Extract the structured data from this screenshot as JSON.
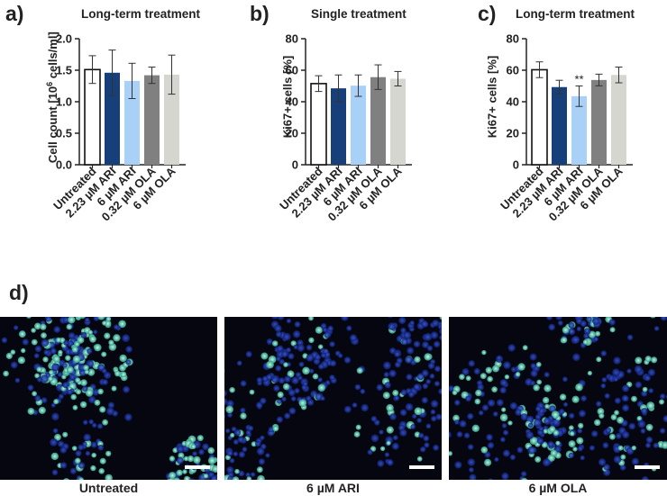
{
  "panels": {
    "a": "a)",
    "b": "b)",
    "c": "c)",
    "d": "d)"
  },
  "colors": {
    "untreated": "#ffffff",
    "ari_low": "#173f7a",
    "ari_high": "#a9d0f7",
    "ola_low": "#808080",
    "ola_high": "#d6d6d0",
    "axis": "#222222",
    "stain_blue": "#1a2f9c",
    "stain_green": "#6fe0c0"
  },
  "chart_data": [
    {
      "type": "bar",
      "title": "Long-term treatment",
      "ylabel_main": "Cell count [10",
      "ylabel_sup": "6",
      "ylabel_tail": " cells/ml]",
      "ylim": [
        0,
        2.0
      ],
      "yticks": [
        "0.0",
        "0.5",
        "1.0",
        "1.5",
        "2.0"
      ],
      "ytick_values": [
        0,
        0.5,
        1.0,
        1.5,
        2.0
      ],
      "categories": [
        "Untreated",
        "2.23 µM ARI",
        "6 µM ARI",
        "0.32 µM OLA",
        "6 µM OLA"
      ],
      "values": [
        1.51,
        1.46,
        1.33,
        1.42,
        1.43
      ],
      "errors": [
        0.22,
        0.36,
        0.28,
        0.13,
        0.31
      ],
      "annotations": [
        "",
        "",
        "",
        "",
        ""
      ]
    },
    {
      "type": "bar",
      "title": "Single treatment",
      "ylabel_main": "Ki67+ cells [%]",
      "ylabel_sup": "",
      "ylabel_tail": "",
      "ylim": [
        0,
        80
      ],
      "yticks": [
        "0",
        "20",
        "40",
        "60",
        "80"
      ],
      "ytick_values": [
        0,
        20,
        40,
        60,
        80
      ],
      "categories": [
        "Untreated",
        "2.23 µM ARI",
        "6 µM ARI",
        "0.32 µM OLA",
        "6 µM OLA"
      ],
      "values": [
        51.5,
        48.5,
        50.2,
        55.6,
        54.6
      ],
      "errors": [
        5.0,
        8.5,
        6.8,
        7.8,
        4.6
      ],
      "annotations": [
        "",
        "",
        "",
        "",
        ""
      ]
    },
    {
      "type": "bar",
      "title": "Long-term treatment",
      "ylabel_main": "Ki67+ cells [%]",
      "ylabel_sup": "",
      "ylabel_tail": "",
      "ylim": [
        0,
        80
      ],
      "yticks": [
        "0",
        "20",
        "40",
        "60",
        "80"
      ],
      "ytick_values": [
        0,
        20,
        40,
        60,
        80
      ],
      "categories": [
        "Untreated",
        "2.23 µM ARI",
        "6 µM ARI",
        "0.32 µM OLA",
        "6 µM OLA"
      ],
      "values": [
        60.3,
        49.3,
        43.5,
        53.8,
        57.0
      ],
      "errors": [
        5.0,
        4.3,
        6.5,
        3.7,
        5.0
      ],
      "annotations": [
        "",
        "",
        "**",
        "",
        ""
      ]
    }
  ],
  "micrographs": [
    {
      "label": "Untreated",
      "density": "high-green"
    },
    {
      "label": "6 µM ARI",
      "density": "low-green"
    },
    {
      "label": "6 µM OLA",
      "density": "mid-green"
    }
  ]
}
